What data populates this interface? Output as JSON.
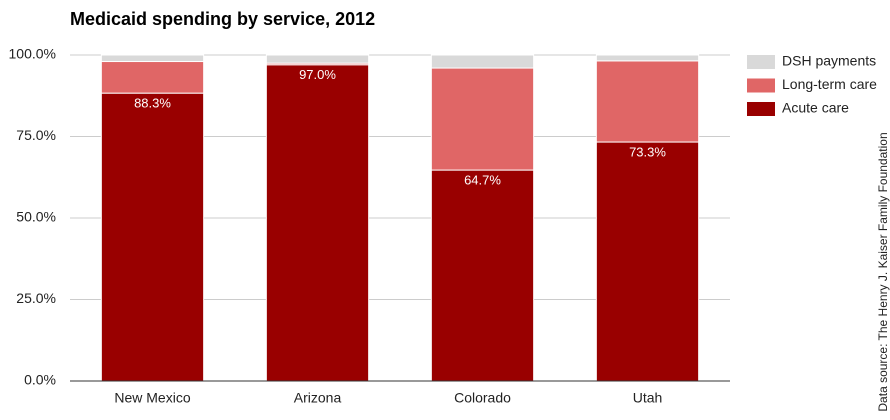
{
  "chart_data": {
    "type": "stacked_bar",
    "title": "Medicaid spending by service, 2012",
    "source": "Data source: The Henry J. Kaiser Family Foundation",
    "categories": [
      "New Mexico",
      "Arizona",
      "Colorado",
      "Utah"
    ],
    "series": [
      {
        "name": "Acute care",
        "color": "#990000",
        "values": [
          88.3,
          97.0,
          64.7,
          73.3
        ],
        "value_labels": [
          "88.3%",
          "97.0%",
          "64.7%",
          "73.3%"
        ]
      },
      {
        "name": "Long-term care",
        "color": "#e06666",
        "values": [
          9.7,
          0.5,
          31.3,
          24.9
        ]
      },
      {
        "name": "DSH payments",
        "color": "#d9d9d9",
        "values": [
          2.0,
          2.5,
          4.0,
          1.8
        ]
      }
    ],
    "ylim": [
      0,
      100
    ],
    "yticks": [
      {
        "value": 0,
        "label": "0.0%"
      },
      {
        "value": 25,
        "label": "25.0%"
      },
      {
        "value": 50,
        "label": "50.0%"
      },
      {
        "value": 75,
        "label": "75.0%"
      },
      {
        "value": 100,
        "label": "100.0%"
      }
    ],
    "grid": true,
    "legend": "right"
  }
}
